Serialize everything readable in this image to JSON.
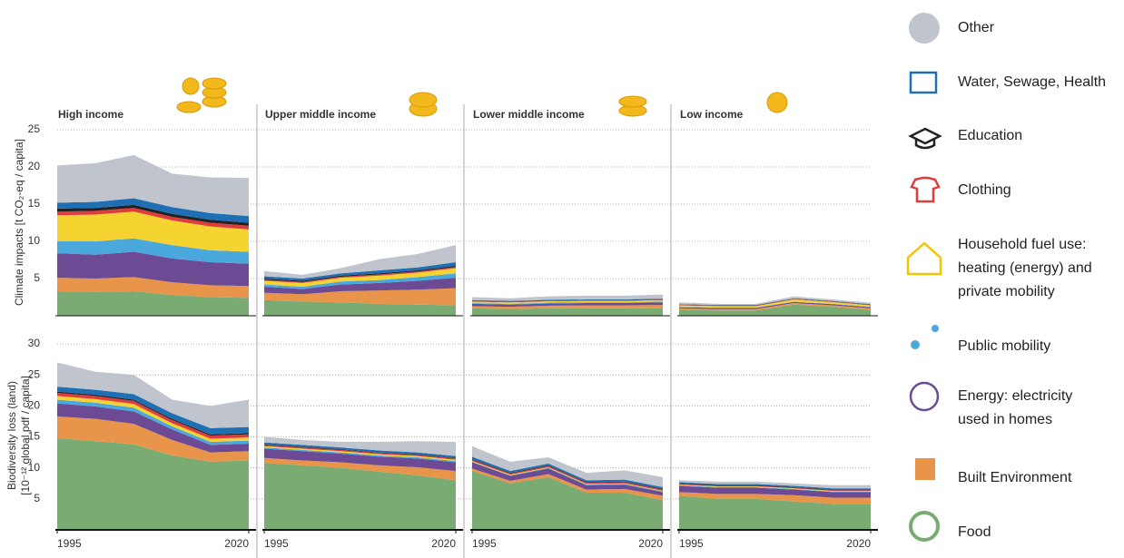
{
  "chart_data": {
    "type": "stacked_area",
    "x": [
      1995,
      2000,
      2005,
      2010,
      2015,
      2020
    ],
    "xlim": [
      1995,
      2020
    ],
    "xticks": [
      1995,
      2020
    ],
    "grid": true,
    "groups": [
      "High income",
      "Upper middle income",
      "Lower middle income",
      "Low income"
    ],
    "series": [
      {
        "name": "Food",
        "color": "#7aab73"
      },
      {
        "name": "Built Environment",
        "color": "#e8944a"
      },
      {
        "name": "Energy: electricity used in homes",
        "color": "#6c4a94"
      },
      {
        "name": "Public mobility",
        "color": "#4aa8dc"
      },
      {
        "name": "Household fuel use: heating (energy) and private mobility",
        "color": "#f5d432"
      },
      {
        "name": "Clothing",
        "color": "#e03c3c"
      },
      {
        "name": "Education",
        "color": "#222222"
      },
      {
        "name": "Water, Sewage, Health",
        "color": "#1f6fb5"
      },
      {
        "name": "Other",
        "color": "#c0c4cc"
      }
    ],
    "rows": [
      {
        "ylabel": [
          "Climate impacts [t CO₂-eq / capita]"
        ],
        "ylim": [
          0,
          25
        ],
        "yticks": [
          5,
          10,
          15,
          20,
          25
        ],
        "groups": [
          {
            "series": [
              [
                3.3,
                3.2,
                3.3,
                2.8,
                2.5,
                2.4
              ],
              [
                1.8,
                1.8,
                1.9,
                1.7,
                1.6,
                1.6
              ],
              [
                3.3,
                3.2,
                3.4,
                3.2,
                3.1,
                3.0
              ],
              [
                1.6,
                1.8,
                1.8,
                1.8,
                1.6,
                1.6
              ],
              [
                3.5,
                3.6,
                3.6,
                3.3,
                3.2,
                3.0
              ],
              [
                0.5,
                0.5,
                0.5,
                0.5,
                0.5,
                0.5
              ],
              [
                0.4,
                0.4,
                0.4,
                0.4,
                0.4,
                0.4
              ],
              [
                0.8,
                0.8,
                0.9,
                0.9,
                0.9,
                0.9
              ],
              [
                5.0,
                5.2,
                5.8,
                4.5,
                4.8,
                5.1
              ]
            ]
          },
          {
            "series": [
              [
                2.1,
                1.9,
                1.8,
                1.6,
                1.5,
                1.4
              ],
              [
                1.0,
                1.0,
                1.5,
                1.8,
                2.0,
                2.3
              ],
              [
                0.8,
                0.7,
                0.9,
                1.0,
                1.2,
                1.4
              ],
              [
                0.3,
                0.3,
                0.4,
                0.4,
                0.5,
                0.6
              ],
              [
                0.5,
                0.5,
                0.5,
                0.6,
                0.6,
                0.7
              ],
              [
                0.15,
                0.15,
                0.15,
                0.15,
                0.15,
                0.15
              ],
              [
                0.15,
                0.15,
                0.15,
                0.15,
                0.15,
                0.15
              ],
              [
                0.3,
                0.3,
                0.3,
                0.4,
                0.4,
                0.5
              ],
              [
                0.7,
                0.5,
                0.7,
                1.5,
                1.8,
                2.3
              ]
            ]
          },
          {
            "series": [
              [
                1.0,
                0.9,
                1.0,
                1.0,
                1.0,
                1.0
              ],
              [
                0.3,
                0.3,
                0.35,
                0.4,
                0.4,
                0.45
              ],
              [
                0.3,
                0.3,
                0.3,
                0.3,
                0.3,
                0.35
              ],
              [
                0.1,
                0.1,
                0.1,
                0.1,
                0.1,
                0.1
              ],
              [
                0.2,
                0.2,
                0.2,
                0.2,
                0.2,
                0.2
              ],
              [
                0.05,
                0.05,
                0.05,
                0.05,
                0.05,
                0.05
              ],
              [
                0.05,
                0.05,
                0.05,
                0.05,
                0.05,
                0.05
              ],
              [
                0.1,
                0.1,
                0.1,
                0.1,
                0.1,
                0.1
              ],
              [
                0.4,
                0.35,
                0.45,
                0.5,
                0.5,
                0.55
              ]
            ]
          },
          {
            "series": [
              [
                0.8,
                0.7,
                0.7,
                1.5,
                1.2,
                0.8
              ],
              [
                0.2,
                0.2,
                0.2,
                0.2,
                0.2,
                0.2
              ],
              [
                0.15,
                0.15,
                0.15,
                0.15,
                0.15,
                0.15
              ],
              [
                0.05,
                0.05,
                0.05,
                0.05,
                0.05,
                0.05
              ],
              [
                0.2,
                0.2,
                0.2,
                0.3,
                0.25,
                0.2
              ],
              [
                0.05,
                0.05,
                0.05,
                0.05,
                0.05,
                0.05
              ],
              [
                0.05,
                0.05,
                0.05,
                0.05,
                0.05,
                0.05
              ],
              [
                0.05,
                0.05,
                0.05,
                0.05,
                0.05,
                0.05
              ],
              [
                0.25,
                0.15,
                0.15,
                0.25,
                0.2,
                0.2
              ]
            ]
          }
        ]
      },
      {
        "ylabel": [
          "Biodiversity loss (land)",
          "[10⁻¹² global pdf / capita]"
        ],
        "ylim": [
          0,
          30
        ],
        "yticks": [
          5,
          10,
          15,
          20,
          25,
          30
        ],
        "groups": [
          {
            "series": [
              [
                14.8,
                14.3,
                13.8,
                12.0,
                11.0,
                11.2
              ],
              [
                3.5,
                3.6,
                3.3,
                2.5,
                1.5,
                1.5
              ],
              [
                2.1,
                2.0,
                2.0,
                1.7,
                1.2,
                1.2
              ],
              [
                0.6,
                0.6,
                0.6,
                0.5,
                0.5,
                0.5
              ],
              [
                0.6,
                0.6,
                0.6,
                0.5,
                0.5,
                0.5
              ],
              [
                0.5,
                0.5,
                0.5,
                0.5,
                0.5,
                0.5
              ],
              [
                0.2,
                0.2,
                0.2,
                0.2,
                0.2,
                0.2
              ],
              [
                0.8,
                0.8,
                0.9,
                0.9,
                1.0,
                1.0
              ],
              [
                3.9,
                2.9,
                3.1,
                2.2,
                3.6,
                4.4
              ]
            ]
          },
          {
            "series": [
              [
                10.8,
                10.4,
                10.0,
                9.4,
                8.8,
                8.0
              ],
              [
                0.8,
                0.8,
                0.9,
                1.0,
                1.3,
                1.5
              ],
              [
                1.5,
                1.5,
                1.4,
                1.4,
                1.4,
                1.4
              ],
              [
                0.2,
                0.2,
                0.2,
                0.2,
                0.2,
                0.2
              ],
              [
                0.2,
                0.2,
                0.2,
                0.2,
                0.2,
                0.2
              ],
              [
                0.2,
                0.2,
                0.2,
                0.2,
                0.2,
                0.2
              ],
              [
                0.1,
                0.1,
                0.1,
                0.1,
                0.1,
                0.1
              ],
              [
                0.3,
                0.3,
                0.3,
                0.3,
                0.3,
                0.3
              ],
              [
                0.9,
                0.8,
                0.9,
                1.4,
                1.8,
                2.3
              ]
            ]
          },
          {
            "series": [
              [
                9.5,
                7.5,
                8.5,
                6.0,
                6.0,
                4.8
              ],
              [
                0.4,
                0.4,
                0.5,
                0.5,
                0.6,
                0.7
              ],
              [
                1.0,
                0.8,
                0.9,
                0.7,
                0.7,
                0.6
              ],
              [
                0.1,
                0.1,
                0.1,
                0.1,
                0.1,
                0.1
              ],
              [
                0.1,
                0.1,
                0.1,
                0.1,
                0.1,
                0.1
              ],
              [
                0.2,
                0.2,
                0.2,
                0.2,
                0.2,
                0.2
              ],
              [
                0.1,
                0.1,
                0.1,
                0.1,
                0.1,
                0.1
              ],
              [
                0.4,
                0.3,
                0.3,
                0.3,
                0.3,
                0.3
              ],
              [
                1.7,
                1.5,
                1.0,
                1.2,
                1.5,
                1.6
              ]
            ]
          },
          {
            "series": [
              [
                5.5,
                5.0,
                5.0,
                4.6,
                4.2,
                4.2
              ],
              [
                0.6,
                0.8,
                0.8,
                1.0,
                1.0,
                1.0
              ],
              [
                1.0,
                1.0,
                1.0,
                0.9,
                0.9,
                0.9
              ],
              [
                0.1,
                0.1,
                0.1,
                0.1,
                0.1,
                0.1
              ],
              [
                0.1,
                0.1,
                0.1,
                0.1,
                0.1,
                0.1
              ],
              [
                0.1,
                0.1,
                0.1,
                0.1,
                0.1,
                0.1
              ],
              [
                0.1,
                0.1,
                0.1,
                0.1,
                0.1,
                0.1
              ],
              [
                0.2,
                0.2,
                0.2,
                0.2,
                0.2,
                0.2
              ],
              [
                0.3,
                0.4,
                0.4,
                0.4,
                0.5,
                0.5
              ]
            ]
          }
        ]
      }
    ]
  }
}
